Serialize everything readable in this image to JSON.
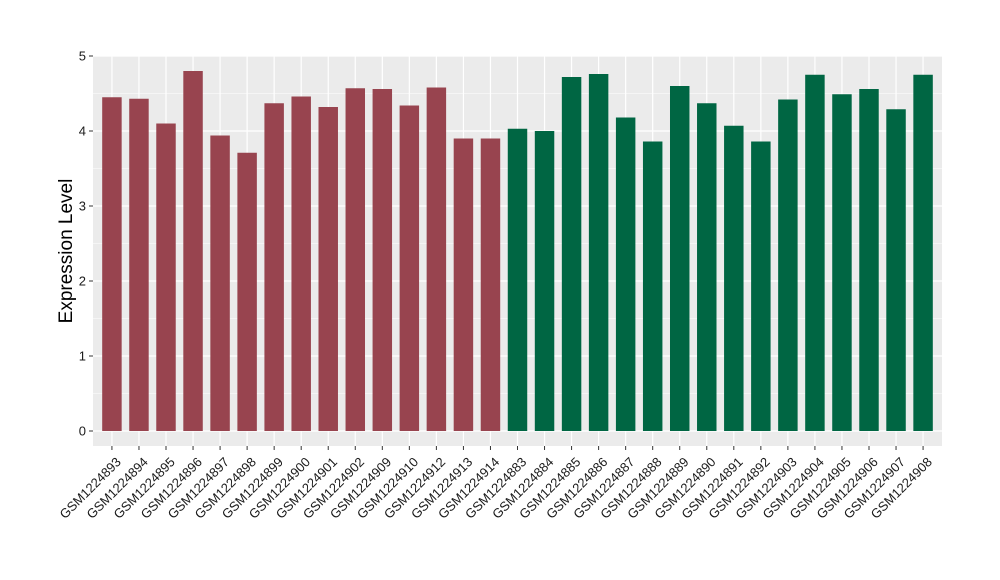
{
  "chart_data": {
    "type": "bar",
    "title": "",
    "xlabel": "",
    "ylabel": "Expression Level",
    "ylim": [
      -0.2,
      5.0
    ],
    "yticks": [
      0,
      1,
      2,
      3,
      4,
      5
    ],
    "grid": true,
    "legend": "none",
    "panel_background": "#ebebeb",
    "grid_color": "#ffffff",
    "categories": [
      "GSM1224893",
      "GSM1224894",
      "GSM1224895",
      "GSM1224896",
      "GSM1224897",
      "GSM1224898",
      "GSM1224899",
      "GSM1224900",
      "GSM1224901",
      "GSM1224902",
      "GSM1224909",
      "GSM1224910",
      "GSM1224912",
      "GSM1224913",
      "GSM1224914",
      "GSM1224883",
      "GSM1224884",
      "GSM1224885",
      "GSM1224886",
      "GSM1224887",
      "GSM1224888",
      "GSM1224889",
      "GSM1224890",
      "GSM1224891",
      "GSM1224892",
      "GSM1224903",
      "GSM1224904",
      "GSM1224905",
      "GSM1224906",
      "GSM1224907",
      "GSM1224908"
    ],
    "values": [
      4.45,
      4.43,
      4.1,
      4.8,
      3.94,
      3.71,
      4.37,
      4.46,
      4.32,
      4.57,
      4.56,
      4.34,
      4.58,
      3.9,
      3.9,
      4.03,
      4.0,
      4.72,
      4.76,
      4.18,
      3.86,
      4.6,
      4.37,
      4.07,
      3.86,
      4.42,
      4.75,
      4.49,
      4.56,
      4.29,
      4.75
    ],
    "bar_colors": [
      "#98444f",
      "#98444f",
      "#98444f",
      "#98444f",
      "#98444f",
      "#98444f",
      "#98444f",
      "#98444f",
      "#98444f",
      "#98444f",
      "#98444f",
      "#98444f",
      "#98444f",
      "#98444f",
      "#98444f",
      "#006643",
      "#006643",
      "#006643",
      "#006643",
      "#006643",
      "#006643",
      "#006643",
      "#006643",
      "#006643",
      "#006643",
      "#006643",
      "#006643",
      "#006643",
      "#006643",
      "#006643",
      "#006643"
    ]
  }
}
